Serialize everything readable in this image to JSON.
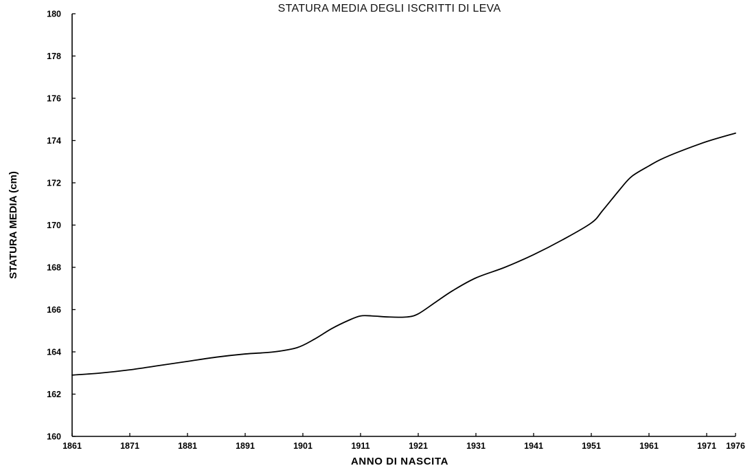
{
  "chart_data": {
    "type": "line",
    "title": "STATURA MEDIA DEGLI ISCRITTI DI LEVA",
    "xlabel": "ANNO DI NASCITA",
    "ylabel": "STATURA MEDIA (cm)",
    "ylim": [
      160,
      180
    ],
    "xlim": [
      1861,
      1976
    ],
    "x_ticks": [
      "1861",
      "1871",
      "1881",
      "1891",
      "1901",
      "1911",
      "1921",
      "1931",
      "1941",
      "1951",
      "1961",
      "1971",
      "1976"
    ],
    "y_ticks": [
      "160",
      "162",
      "164",
      "166",
      "168",
      "170",
      "172",
      "174",
      "176",
      "178",
      "180"
    ],
    "grid": false,
    "series": [
      {
        "x": [
          1861,
          1866,
          1871,
          1876,
          1881,
          1886,
          1891,
          1896,
          1900,
          1903,
          1906,
          1909,
          1911,
          1913,
          1916,
          1919,
          1921,
          1924,
          1927,
          1931,
          1936,
          1941,
          1946,
          1951,
          1953,
          1956,
          1958,
          1961,
          1963,
          1966,
          1971,
          1976
        ],
        "values": [
          162.9,
          163.0,
          163.15,
          163.35,
          163.55,
          163.75,
          163.9,
          164.0,
          164.2,
          164.6,
          165.1,
          165.5,
          165.7,
          165.7,
          165.65,
          165.65,
          165.8,
          166.35,
          166.9,
          167.5,
          168.0,
          168.6,
          169.3,
          170.1,
          170.7,
          171.7,
          172.3,
          172.8,
          173.1,
          173.45,
          173.95,
          174.35
        ]
      }
    ]
  }
}
